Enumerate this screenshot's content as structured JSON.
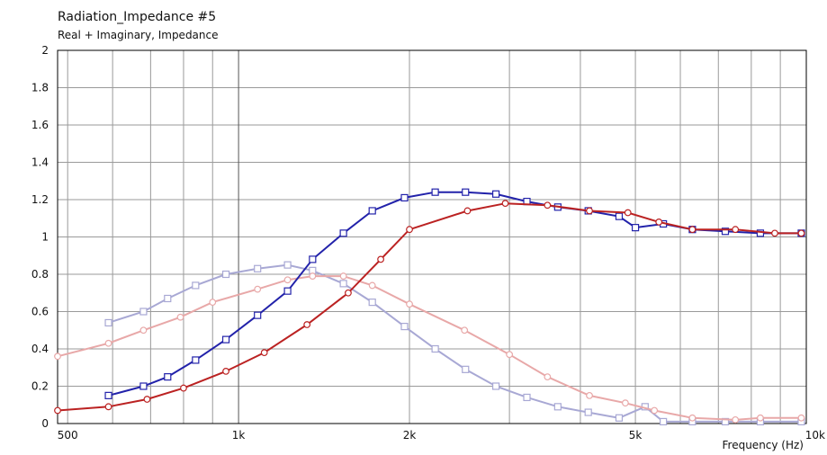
{
  "chart_data": {
    "type": "line",
    "title": "Radiation_Impedance #5",
    "subtitle": "Real + Imaginary, Impedance",
    "xlabel": "Frequency  (Hz)",
    "ylabel": "",
    "x_scale": "log",
    "xlim": [
      480,
      10000
    ],
    "ylim": [
      0,
      2
    ],
    "x_ticks": [
      {
        "value": 500,
        "label": "500"
      },
      {
        "value": 1000,
        "label": "1k"
      },
      {
        "value": 2000,
        "label": "2k"
      },
      {
        "value": 5000,
        "label": "5k"
      },
      {
        "value": 10000,
        "label": "10k"
      }
    ],
    "y_ticks": [
      {
        "value": 0,
        "label": "0"
      },
      {
        "value": 0.2,
        "label": "0.2"
      },
      {
        "value": 0.4,
        "label": "0.4"
      },
      {
        "value": 0.6,
        "label": "0.6"
      },
      {
        "value": 0.8,
        "label": "0.8"
      },
      {
        "value": 1,
        "label": "1"
      },
      {
        "value": 1.2,
        "label": "1.2"
      },
      {
        "value": 1.4,
        "label": "1.4"
      },
      {
        "value": 1.6,
        "label": "1.6"
      },
      {
        "value": 1.8,
        "label": "1.8"
      },
      {
        "value": 2,
        "label": "2"
      }
    ],
    "grid": true,
    "series": [
      {
        "color": "#a8a8d4",
        "marker": "square",
        "points": [
          [
            590,
            0.54
          ],
          [
            680,
            0.6
          ],
          [
            750,
            0.67
          ],
          [
            840,
            0.74
          ],
          [
            950,
            0.8
          ],
          [
            1080,
            0.83
          ],
          [
            1220,
            0.85
          ],
          [
            1350,
            0.82
          ],
          [
            1530,
            0.75
          ],
          [
            1720,
            0.65
          ],
          [
            1960,
            0.52
          ],
          [
            2220,
            0.4
          ],
          [
            2510,
            0.29
          ],
          [
            2840,
            0.2
          ],
          [
            3220,
            0.14
          ],
          [
            3650,
            0.09
          ],
          [
            4130,
            0.06
          ],
          [
            4680,
            0.03
          ],
          [
            5200,
            0.09
          ],
          [
            5600,
            0.01
          ],
          [
            6300,
            0.01
          ],
          [
            7200,
            0.01
          ],
          [
            8300,
            0.01
          ],
          [
            9800,
            0.01
          ]
        ]
      },
      {
        "color": "#e8a8a8",
        "marker": "circle",
        "points": [
          [
            480,
            0.36
          ],
          [
            590,
            0.43
          ],
          [
            680,
            0.5
          ],
          [
            790,
            0.57
          ],
          [
            900,
            0.65
          ],
          [
            1080,
            0.72
          ],
          [
            1220,
            0.77
          ],
          [
            1350,
            0.79
          ],
          [
            1530,
            0.79
          ],
          [
            1720,
            0.74
          ],
          [
            2000,
            0.64
          ],
          [
            2500,
            0.5
          ],
          [
            3000,
            0.37
          ],
          [
            3500,
            0.25
          ],
          [
            4150,
            0.15
          ],
          [
            4800,
            0.11
          ],
          [
            5400,
            0.07
          ],
          [
            6300,
            0.03
          ],
          [
            7500,
            0.02
          ],
          [
            8300,
            0.03
          ],
          [
            9800,
            0.03
          ]
        ]
      },
      {
        "color": "#2222aa",
        "marker": "square",
        "points": [
          [
            590,
            0.15
          ],
          [
            680,
            0.2
          ],
          [
            750,
            0.25
          ],
          [
            840,
            0.34
          ],
          [
            950,
            0.45
          ],
          [
            1080,
            0.58
          ],
          [
            1220,
            0.71
          ],
          [
            1350,
            0.88
          ],
          [
            1530,
            1.02
          ],
          [
            1720,
            1.14
          ],
          [
            1960,
            1.21
          ],
          [
            2220,
            1.24
          ],
          [
            2510,
            1.24
          ],
          [
            2840,
            1.23
          ],
          [
            3220,
            1.19
          ],
          [
            3650,
            1.16
          ],
          [
            4130,
            1.14
          ],
          [
            4680,
            1.11
          ],
          [
            5000,
            1.05
          ],
          [
            5600,
            1.07
          ],
          [
            6300,
            1.04
          ],
          [
            7200,
            1.03
          ],
          [
            8300,
            1.02
          ],
          [
            9800,
            1.02
          ]
        ]
      },
      {
        "color": "#bb2222",
        "marker": "circle",
        "points": [
          [
            480,
            0.07
          ],
          [
            590,
            0.09
          ],
          [
            690,
            0.13
          ],
          [
            800,
            0.19
          ],
          [
            950,
            0.28
          ],
          [
            1110,
            0.38
          ],
          [
            1320,
            0.53
          ],
          [
            1560,
            0.7
          ],
          [
            1780,
            0.88
          ],
          [
            2000,
            1.04
          ],
          [
            2530,
            1.14
          ],
          [
            2950,
            1.18
          ],
          [
            3500,
            1.17
          ],
          [
            4150,
            1.14
          ],
          [
            4850,
            1.13
          ],
          [
            5500,
            1.08
          ],
          [
            6300,
            1.04
          ],
          [
            7500,
            1.04
          ],
          [
            8800,
            1.02
          ],
          [
            9800,
            1.02
          ]
        ]
      }
    ]
  }
}
